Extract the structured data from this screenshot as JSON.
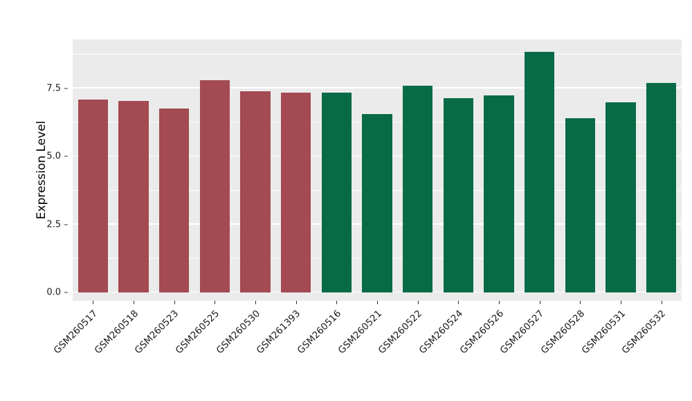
{
  "style": {
    "panel_background": "#EBEBEB",
    "grid_color": "#FFFFFF",
    "tick_color": "#333333",
    "label_color": "#1A1A1A"
  },
  "chart_data": {
    "type": "bar",
    "title": "",
    "xlabel": "",
    "ylabel": "Expression Level",
    "ylim": [
      -0.3,
      9.3
    ],
    "grid": true,
    "legend": "none",
    "yticks": [
      0,
      2.5,
      5,
      7.5
    ],
    "ytick_labels": [
      "0.0",
      "2.5",
      "5.0",
      "7.5"
    ],
    "minor_gridlines": [
      1.25,
      3.75,
      6.25,
      8.75
    ],
    "categories": [
      "GSM260517",
      "GSM260518",
      "GSM260523",
      "GSM260525",
      "GSM260530",
      "GSM261393",
      "GSM260516",
      "GSM260521",
      "GSM260522",
      "GSM260524",
      "GSM260526",
      "GSM260527",
      "GSM260528",
      "GSM260531",
      "GSM260532"
    ],
    "values": [
      7.1,
      7.05,
      6.75,
      7.8,
      7.4,
      7.35,
      7.35,
      6.55,
      7.6,
      7.15,
      7.25,
      8.85,
      6.4,
      7.0,
      7.7
    ],
    "groups": [
      0,
      0,
      0,
      0,
      0,
      0,
      1,
      1,
      1,
      1,
      1,
      1,
      1,
      1,
      1
    ],
    "group_colors": [
      "#A34A52",
      "#086B46"
    ],
    "bar_width_fraction": 0.74
  }
}
